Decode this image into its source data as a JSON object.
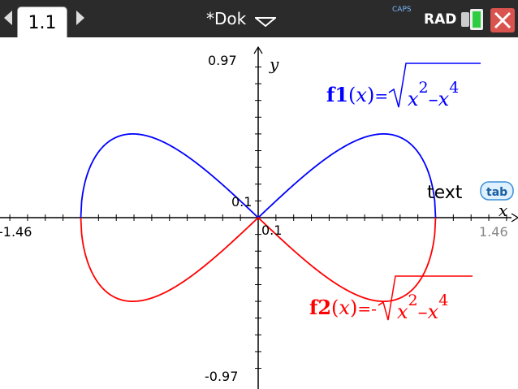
{
  "titlebar": {
    "tab_label": "1.1",
    "document_title": "*Dok",
    "caps_indicator": "CAPS",
    "angle_mode": "RAD"
  },
  "graph": {
    "y_axis_label": "y",
    "x_axis_label": "x",
    "y_max_label": "0.97",
    "y_min_label": "-0.97",
    "x_min_label": "-1.46",
    "x_max_label": "1.46",
    "y_scale_label": "0.1",
    "x_scale_label": "0.1",
    "text_tool_label": "text",
    "tab_badge": "tab",
    "f1": {
      "name": "f1",
      "arg": "x",
      "eq": "=",
      "sign": "",
      "radicand_base1": "x",
      "exp1": "2",
      "minus": "–",
      "radicand_base2": "x",
      "exp2": "4",
      "color": "#0000ff"
    },
    "f2": {
      "name": "f2",
      "arg": "x",
      "eq": "=",
      "sign": "-",
      "radicand_base1": "x",
      "exp1": "2",
      "minus": "–",
      "radicand_base2": "x",
      "exp2": "4",
      "color": "#ff0000"
    }
  },
  "window": {
    "xmin": -1.46,
    "xmax": 1.46,
    "ymin": -0.97,
    "ymax": 0.97
  }
}
